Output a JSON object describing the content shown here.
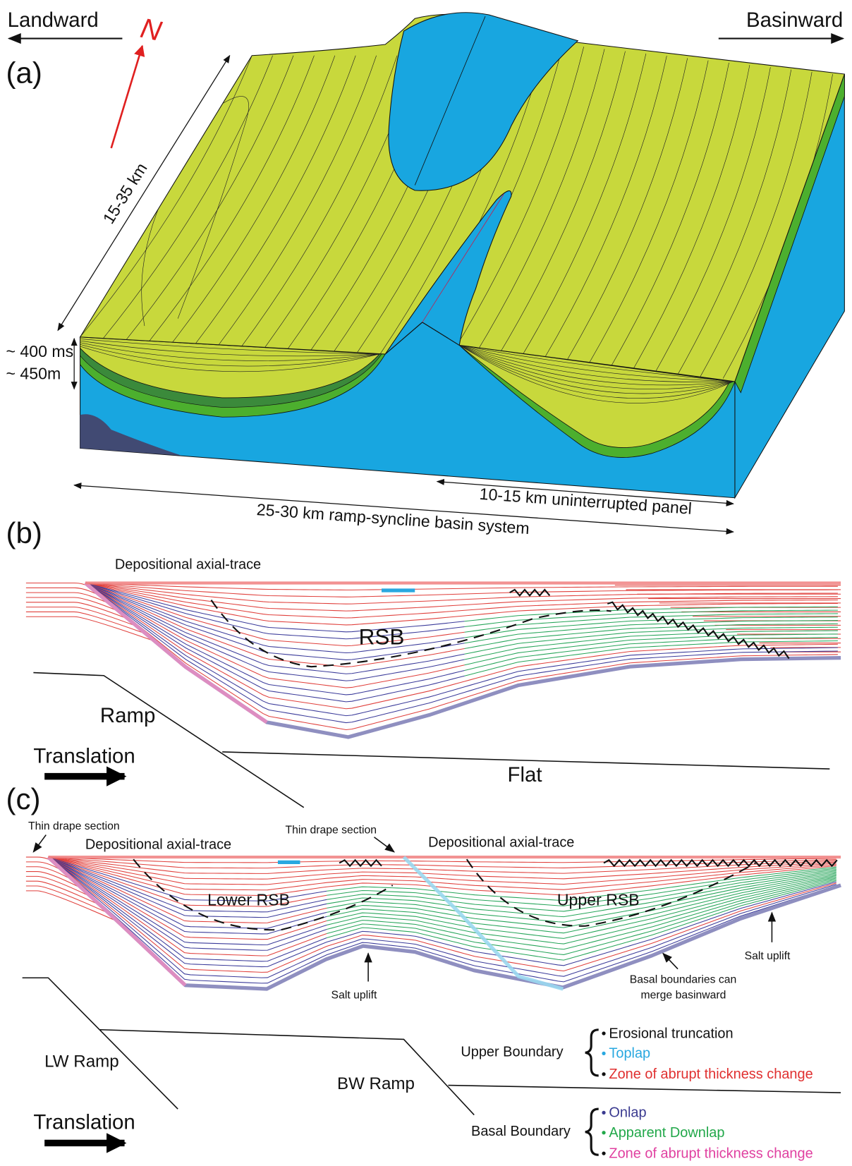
{
  "panel_a": {
    "label": "(a)",
    "landward": "Landward",
    "basinward": "Basinward",
    "north": "N",
    "length": "15-35 km",
    "thickness_time": "~ 400 ms",
    "thickness_depth": "~ 450m",
    "panel_width": "10-15 km uninterrupted panel",
    "system_width": "25-30 km ramp-syncline basin system"
  },
  "panel_b": {
    "label": "(b)",
    "axial_trace": "Depositional axial-trace",
    "basin": "RSB",
    "ramp": "Ramp",
    "flat": "Flat",
    "translation": "Translation"
  },
  "panel_c": {
    "label": "(c)",
    "thin_drape_left": "Thin drape section",
    "thin_drape_right": "Thin drape section",
    "axial_trace_left": "Depositional axial-trace",
    "axial_trace_right": "Depositional axial-trace",
    "lower_basin": "Lower RSB",
    "upper_basin": "Upper RSB",
    "salt_uplift_center": "Salt uplift",
    "salt_uplift_right": "Salt uplift",
    "merge_note": [
      "Basal boundaries can",
      "merge basinward"
    ],
    "lw_ramp": "LW Ramp",
    "bw_ramp": "BW Ramp",
    "translation": "Translation",
    "legend": {
      "upper": {
        "title": "Upper Boundary",
        "items": [
          "Erosional truncation",
          "Toplap",
          "Zone of abrupt thickness change"
        ]
      },
      "basal": {
        "title": "Basal Boundary",
        "items": [
          "Onlap",
          "Apparent Downlap",
          "Zone of abrupt thickness change"
        ]
      }
    }
  }
}
